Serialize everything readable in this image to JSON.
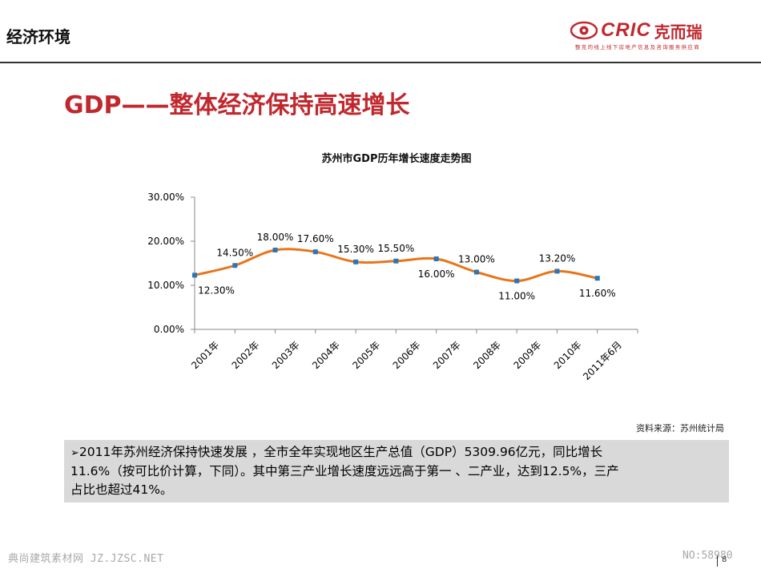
{
  "header": {
    "section_title": "经济环境",
    "logo_text": "CRIC",
    "logo_cn": "克而瑞",
    "logo_tagline": "整充的线上线下房地产信息及咨询服务供应商"
  },
  "main_title": "GDP——整体经济保持高速增长",
  "chart_data": {
    "type": "line",
    "title": "苏州市GDP历年增长速度走势图",
    "categories": [
      "2001年",
      "2002年",
      "2003年",
      "2004年",
      "2005年",
      "2006年",
      "2007年",
      "2008年",
      "2009年",
      "2010年",
      "2011年6月"
    ],
    "values": [
      12.3,
      14.5,
      18.0,
      17.6,
      15.3,
      15.5,
      16.0,
      13.0,
      11.0,
      13.2,
      11.6
    ],
    "value_labels": [
      "12.30%",
      "14.50%",
      "18.00%",
      "17.60%",
      "15.30%",
      "15.50%",
      "16.00%",
      "13.00%",
      "11.00%",
      "13.20%",
      "11.60%"
    ],
    "y_ticks": [
      "0.00%",
      "10.00%",
      "20.00%",
      "30.00%"
    ],
    "ylim": [
      0,
      30
    ],
    "line_color": "#e8751a",
    "marker_color": "#2e75b6",
    "smooth": true
  },
  "source_text": "资料来源：苏州统计局",
  "note": {
    "bullet": "➢",
    "lines": [
      "2011年苏州经济保持快速发展 ，全市全年实现地区生产总值（GDP）5309.96亿元，同比增长",
      "11.6%（按可比价计算，下同）。其中第三产业增长速度远远高于第一 、二产业，达到12.5%，三产",
      "占比也超过41%。"
    ]
  },
  "footer": {
    "watermark_left": "典尚建筑素材网 JZ.JZSC.NET",
    "watermark_right": "NO:58980",
    "page_number": "8"
  }
}
